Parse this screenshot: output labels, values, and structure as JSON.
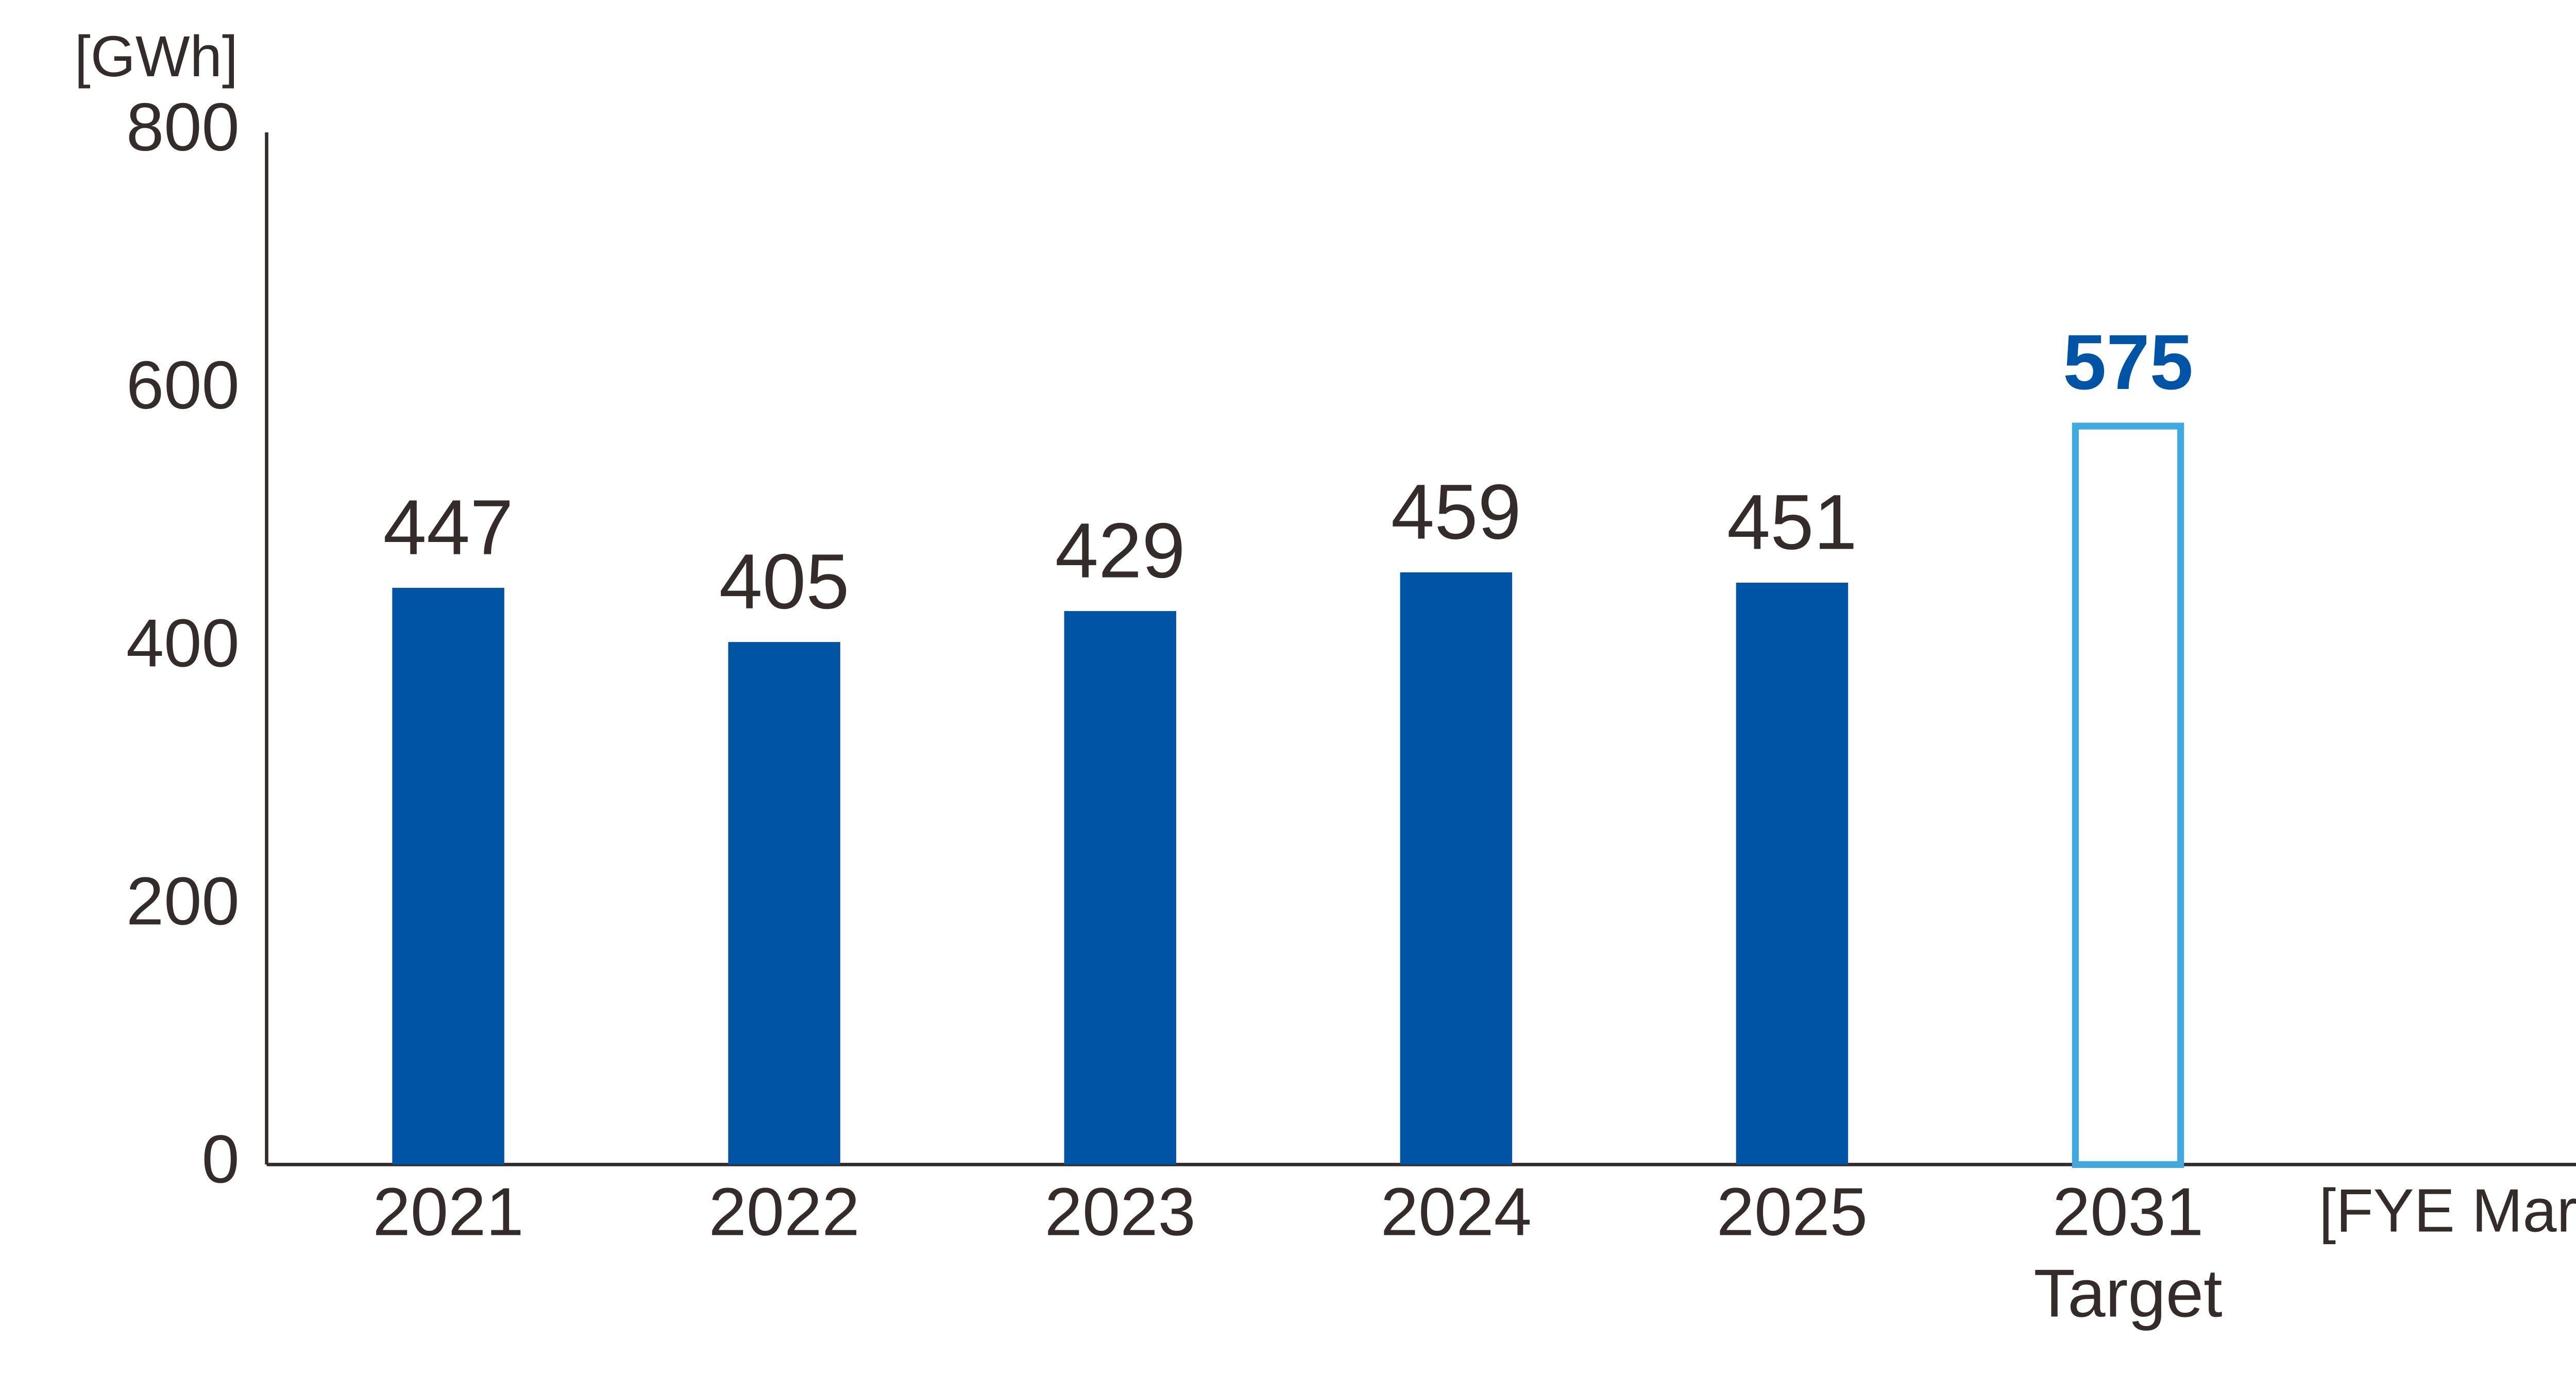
{
  "chart_data": {
    "type": "bar",
    "y_axis_label": "[GWh]",
    "x_axis_label": "[FYE March]",
    "categories": [
      "2021",
      "2022",
      "2023",
      "2024",
      "2025",
      "2031"
    ],
    "category_sublabels": [
      null,
      null,
      null,
      null,
      null,
      "Target"
    ],
    "values": [
      447,
      405,
      429,
      459,
      451,
      575
    ],
    "colors": [
      "#0054a6",
      "#0054a6",
      "#0054a6",
      "#0054a6",
      "#0054a6",
      "#3fa9e0"
    ],
    "fill_styles": [
      "filled",
      "filled",
      "filled",
      "filled",
      "filled",
      "outline"
    ],
    "value_label_colors": [
      "#342c2a",
      "#342c2a",
      "#342c2a",
      "#342c2a",
      "#342c2a",
      "#0054a6"
    ],
    "value_label_weights": [
      "normal",
      "normal",
      "normal",
      "normal",
      "normal",
      "bold"
    ],
    "ylim": [
      0,
      800
    ],
    "yticks": [
      0,
      200,
      400,
      600,
      800
    ],
    "grid": false
  }
}
